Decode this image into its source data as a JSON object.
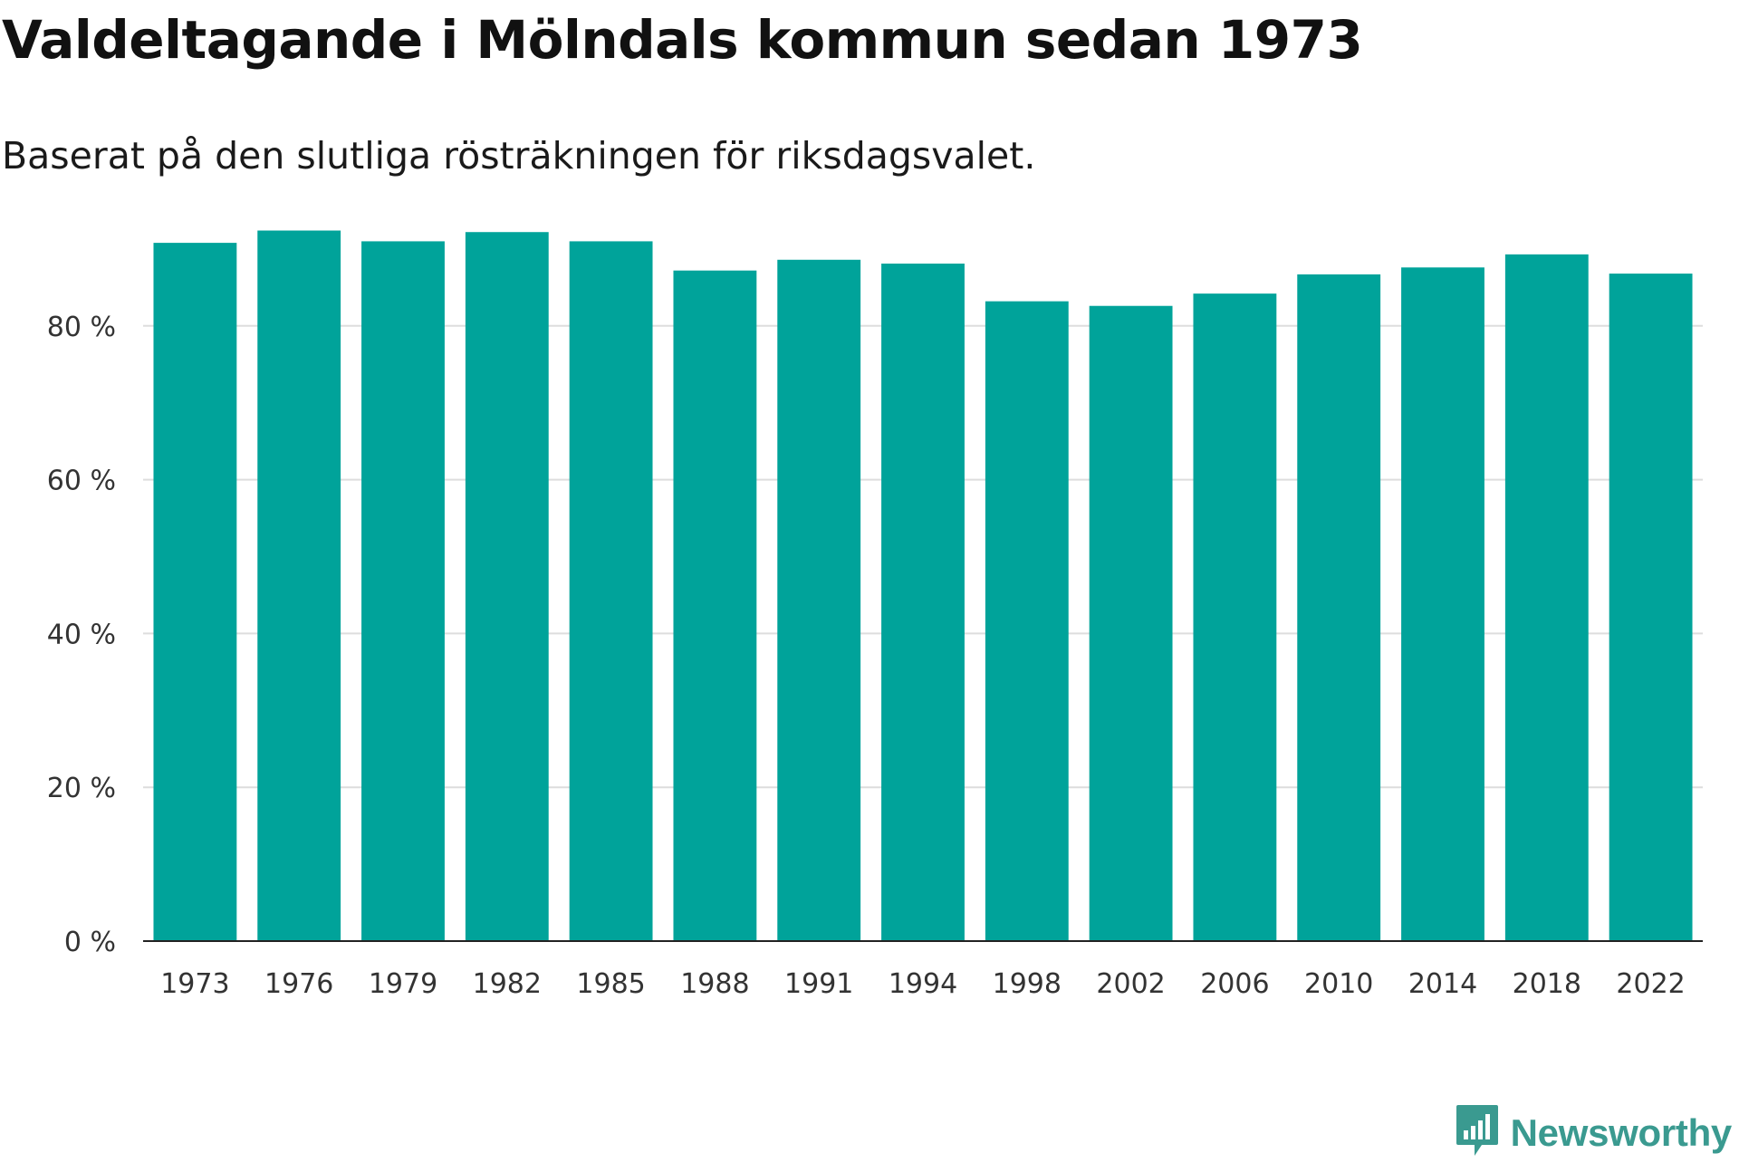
{
  "chart_data": {
    "type": "bar",
    "title": "Valdeltagande i Mölndals kommun sedan 1973",
    "subtitle": "Baserat på den slutliga rösträkningen för riksdagsvalet.",
    "xlabel": "",
    "ylabel": "",
    "categories": [
      "1973",
      "1976",
      "1979",
      "1982",
      "1985",
      "1988",
      "1991",
      "1994",
      "1998",
      "2002",
      "2006",
      "2010",
      "2014",
      "2018",
      "2022"
    ],
    "values": [
      90.8,
      92.4,
      91.0,
      92.2,
      91.0,
      87.2,
      88.6,
      88.1,
      83.2,
      82.6,
      84.2,
      86.7,
      87.6,
      89.3,
      86.8
    ],
    "ylim": [
      0,
      100
    ],
    "yticks": [
      0,
      20,
      40,
      60,
      80
    ],
    "ytick_labels": [
      "0 %",
      "20 %",
      "40 %",
      "60 %",
      "80 %"
    ],
    "grid": true,
    "bar_color": "#00a39a"
  },
  "brand": {
    "name": "Newsworthy",
    "icon": "newsworthy-logo-icon",
    "color": "#3a9a90"
  }
}
